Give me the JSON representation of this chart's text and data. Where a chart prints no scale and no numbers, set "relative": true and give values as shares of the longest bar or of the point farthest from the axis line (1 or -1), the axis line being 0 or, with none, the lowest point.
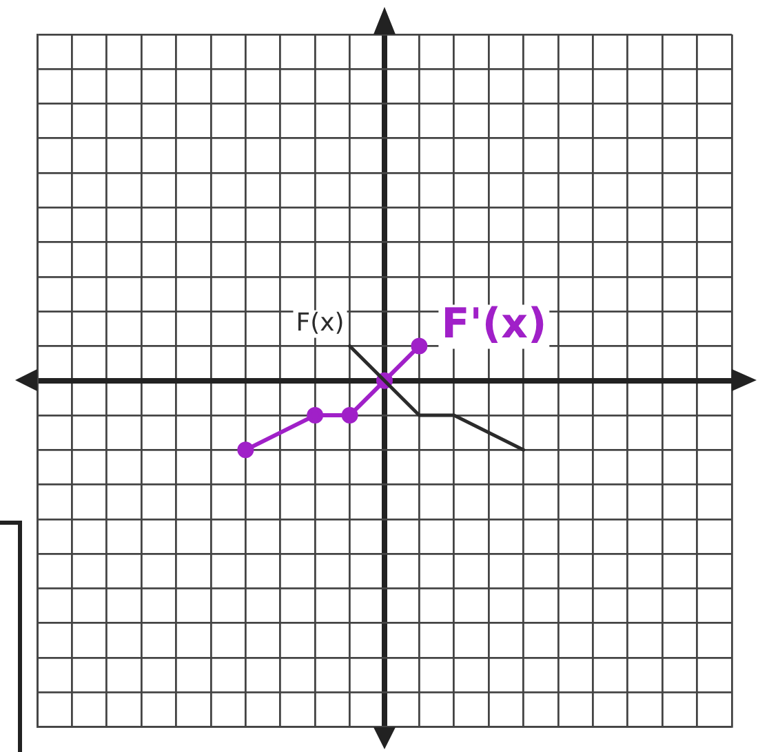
{
  "chart_data": {
    "type": "line",
    "relative": true,
    "grid": true,
    "legend": false,
    "categories": [
      null,
      null,
      null,
      null,
      null,
      null,
      null,
      null,
      null,
      null,
      null,
      null,
      null,
      null,
      null,
      null,
      null,
      null,
      null,
      null,
      null
    ],
    "series": [
      {
        "name": "F(x)",
        "color": "#2b2b2b",
        "values": [
          null,
          null,
          null,
          null,
          null,
          null,
          null,
          null,
          null,
          0.5,
          0,
          -0.5,
          -0.5,
          null,
          -1,
          null,
          null,
          null,
          null,
          null,
          null
        ],
        "marker": "none"
      },
      {
        "name": "F'(x)",
        "color": "#a020c8",
        "values": [
          null,
          null,
          null,
          null,
          null,
          null,
          -1,
          null,
          -0.5,
          -0.5,
          0,
          0.5,
          null,
          null,
          null,
          null,
          null,
          null,
          null,
          null,
          null
        ],
        "marker": "circle"
      }
    ]
  }
}
